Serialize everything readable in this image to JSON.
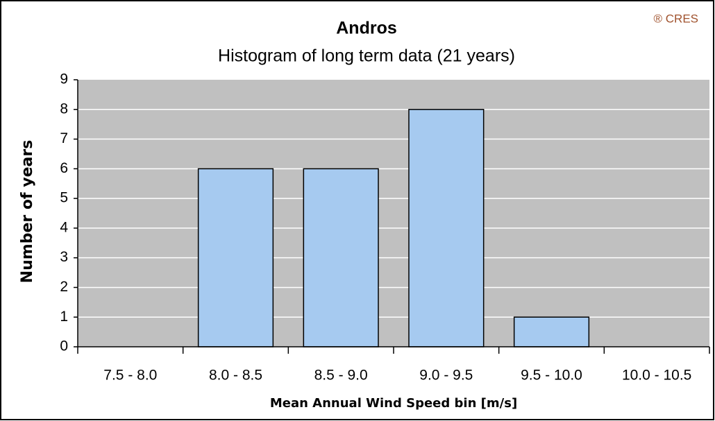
{
  "chart_data": {
    "type": "bar",
    "title": "Andros",
    "subtitle": "Histogram of long term data (21 years)",
    "annotation": "® CRES",
    "x_label": "Mean Annual Wind Speed bin [m/s]",
    "y_label": "Number of years",
    "categories": [
      "7.5 - 8.0",
      "8.0 - 8.5",
      "8.5 - 9.0",
      "9.0 - 9.5",
      "9.5 - 10.0",
      "10.0 - 10.5"
    ],
    "values": [
      0,
      6,
      6,
      8,
      1,
      0
    ],
    "color": "#a6caf0",
    "ylim": [
      0,
      9
    ],
    "yticks": [
      0,
      1,
      2,
      3,
      4,
      5,
      6,
      7,
      8,
      9
    ],
    "grid": true
  }
}
